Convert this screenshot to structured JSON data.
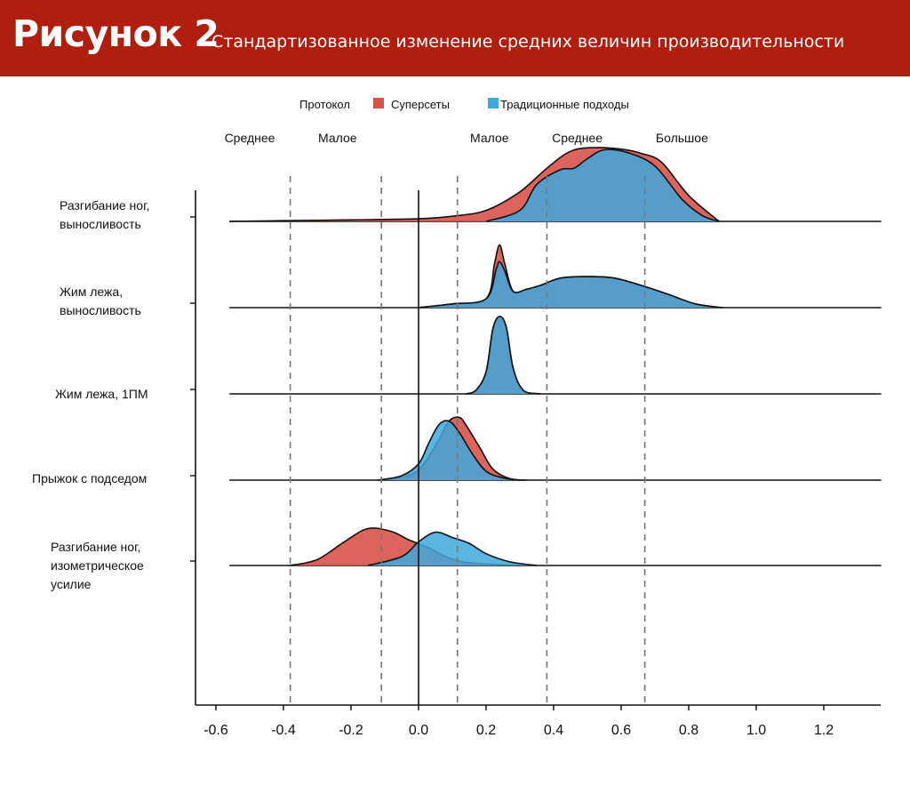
{
  "header": {
    "figure_label": "Рисунок 2",
    "subtitle": "Стандартизованное изменение средних величин производительности"
  },
  "colors": {
    "banner": "#b01e0f",
    "supersets": "#d9534a",
    "traditional": "#3fa7dc",
    "overlap": "#4f6b90"
  },
  "chart_data": {
    "type": "ridgeline",
    "title": "",
    "xlabel": "",
    "ylabel": "",
    "xlim": [
      -0.6,
      1.37
    ],
    "x_ticks": [
      "-0.6",
      "-0.4",
      "-0.2",
      "0.0",
      "0.2",
      "0.4",
      "0.6",
      "0.8",
      "1.0",
      "1.2"
    ],
    "x_tick_values": [
      -0.6,
      -0.4,
      -0.2,
      0.0,
      0.2,
      0.4,
      0.6,
      0.8,
      1.0,
      1.2
    ],
    "legend": {
      "title": "Протокол",
      "position": "top",
      "items": [
        {
          "key": "supersets",
          "label": "Суперсеты"
        },
        {
          "key": "traditional",
          "label": "Традиционные подходы"
        }
      ]
    },
    "reference_lines": [
      {
        "x": 0.0,
        "style": "solid"
      },
      {
        "x": -0.38,
        "style": "dashed"
      },
      {
        "x": -0.11,
        "style": "dashed"
      },
      {
        "x": 0.115,
        "style": "dashed"
      },
      {
        "x": 0.38,
        "style": "dashed"
      },
      {
        "x": 0.67,
        "style": "dashed"
      }
    ],
    "zones": [
      {
        "label": "Среднее",
        "x": -0.5
      },
      {
        "label": "Малое",
        "x": -0.24
      },
      {
        "label": "Малое",
        "x": 0.21
      },
      {
        "label": "Среднее",
        "x": 0.47
      },
      {
        "label": "Большое",
        "x": 0.78
      }
    ],
    "rows": [
      {
        "label": "Разгибание ног, выносливость",
        "label_lines": [
          "Разгибание ног,",
          "выносливость"
        ],
        "range": [
          -0.56,
          0.89
        ],
        "series": {
          "supersets": {
            "points": [
              [
                -0.56,
                0
              ],
              [
                -0.4,
                0.01
              ],
              [
                -0.2,
                0.02
              ],
              [
                0,
                0.035
              ],
              [
                0.1,
                0.07
              ],
              [
                0.2,
                0.15
              ],
              [
                0.3,
                0.4
              ],
              [
                0.38,
                0.72
              ],
              [
                0.45,
                0.95
              ],
              [
                0.52,
                1.0
              ],
              [
                0.6,
                0.98
              ],
              [
                0.66,
                0.92
              ],
              [
                0.72,
                0.8
              ],
              [
                0.8,
                0.35
              ],
              [
                0.89,
                0
              ]
            ]
          },
          "traditional": {
            "points": [
              [
                0.2,
                0
              ],
              [
                0.3,
                0.15
              ],
              [
                0.35,
                0.5
              ],
              [
                0.42,
                0.7
              ],
              [
                0.46,
                0.72
              ],
              [
                0.5,
                0.85
              ],
              [
                0.55,
                0.97
              ],
              [
                0.62,
                0.93
              ],
              [
                0.7,
                0.75
              ],
              [
                0.78,
                0.3
              ],
              [
                0.84,
                0.08
              ],
              [
                0.89,
                0
              ]
            ]
          }
        }
      },
      {
        "label": "Жим лежа, выносливость",
        "label_lines": [
          "Жим лежа,",
          "выносливость"
        ],
        "range": [
          -0.56,
          0.9
        ],
        "series": {
          "supersets": {
            "points": [
              [
                0,
                0
              ],
              [
                0.1,
                0.05
              ],
              [
                0.2,
                0.12
              ],
              [
                0.225,
                0.6
              ],
              [
                0.24,
                0.85
              ],
              [
                0.255,
                0.6
              ],
              [
                0.28,
                0.22
              ],
              [
                0.32,
                0.25
              ],
              [
                0.36,
                0.3
              ],
              [
                0.42,
                0.4
              ],
              [
                0.5,
                0.42
              ],
              [
                0.58,
                0.4
              ],
              [
                0.66,
                0.3
              ],
              [
                0.74,
                0.18
              ],
              [
                0.82,
                0.05
              ],
              [
                0.9,
                0
              ]
            ]
          },
          "traditional": {
            "points": [
              [
                0,
                0
              ],
              [
                0.1,
                0.05
              ],
              [
                0.2,
                0.12
              ],
              [
                0.23,
                0.52
              ],
              [
                0.24,
                0.62
              ],
              [
                0.255,
                0.5
              ],
              [
                0.28,
                0.22
              ],
              [
                0.32,
                0.25
              ],
              [
                0.36,
                0.3
              ],
              [
                0.42,
                0.4
              ],
              [
                0.5,
                0.42
              ],
              [
                0.58,
                0.4
              ],
              [
                0.66,
                0.3
              ],
              [
                0.74,
                0.18
              ],
              [
                0.82,
                0.05
              ],
              [
                0.9,
                0
              ]
            ]
          }
        }
      },
      {
        "label": "Жим лежа, 1ПМ",
        "label_lines": [
          "Жим лежа, 1ПМ"
        ],
        "range": [
          -0.56,
          1.37
        ],
        "series": {
          "supersets": {
            "points": [
              [
                0.14,
                0
              ],
              [
                0.17,
                0.05
              ],
              [
                0.2,
                0.3
              ],
              [
                0.22,
                0.88
              ],
              [
                0.24,
                1.05
              ],
              [
                0.26,
                0.9
              ],
              [
                0.28,
                0.35
              ],
              [
                0.31,
                0.05
              ],
              [
                0.36,
                0
              ]
            ]
          },
          "traditional": {
            "points": [
              [
                0.14,
                0
              ],
              [
                0.17,
                0.05
              ],
              [
                0.2,
                0.3
              ],
              [
                0.22,
                0.88
              ],
              [
                0.24,
                1.05
              ],
              [
                0.26,
                0.9
              ],
              [
                0.28,
                0.35
              ],
              [
                0.31,
                0.05
              ],
              [
                0.36,
                0
              ]
            ]
          }
        }
      },
      {
        "label": "Прыжок с подседом",
        "label_lines": [
          "Прыжок с подседом"
        ],
        "range": [
          -0.56,
          1.37
        ],
        "series": {
          "supersets": {
            "points": [
              [
                -0.1,
                0
              ],
              [
                -0.02,
                0.08
              ],
              [
                0.02,
                0.25
              ],
              [
                0.06,
                0.55
              ],
              [
                0.09,
                0.8
              ],
              [
                0.12,
                0.85
              ],
              [
                0.14,
                0.75
              ],
              [
                0.18,
                0.45
              ],
              [
                0.22,
                0.15
              ],
              [
                0.27,
                0.02
              ],
              [
                0.32,
                0
              ]
            ]
          },
          "traditional": {
            "points": [
              [
                -0.12,
                0
              ],
              [
                -0.05,
                0.06
              ],
              [
                0,
                0.22
              ],
              [
                0.03,
                0.5
              ],
              [
                0.06,
                0.75
              ],
              [
                0.09,
                0.8
              ],
              [
                0.12,
                0.65
              ],
              [
                0.16,
                0.35
              ],
              [
                0.2,
                0.12
              ],
              [
                0.25,
                0.03
              ],
              [
                0.3,
                0
              ]
            ]
          }
        }
      },
      {
        "label": "Разгибание ног, изометрическое усилие",
        "label_lines": [
          "Разгибание ног,",
          "изометрическое",
          "усилие"
        ],
        "range": [
          -0.56,
          1.37
        ],
        "series": {
          "supersets": {
            "points": [
              [
                -0.38,
                0
              ],
              [
                -0.3,
                0.08
              ],
              [
                -0.22,
                0.32
              ],
              [
                -0.15,
                0.5
              ],
              [
                -0.08,
                0.46
              ],
              [
                -0.03,
                0.35
              ],
              [
                0.03,
                0.24
              ],
              [
                0.08,
                0.12
              ],
              [
                0.13,
                0.05
              ],
              [
                0.2,
                0.02
              ],
              [
                0.3,
                0
              ]
            ]
          },
          "traditional": {
            "points": [
              [
                -0.15,
                0
              ],
              [
                -0.05,
                0.12
              ],
              [
                0,
                0.32
              ],
              [
                0.05,
                0.45
              ],
              [
                0.1,
                0.38
              ],
              [
                0.15,
                0.3
              ],
              [
                0.2,
                0.16
              ],
              [
                0.27,
                0.05
              ],
              [
                0.35,
                0
              ]
            ]
          }
        }
      }
    ]
  }
}
